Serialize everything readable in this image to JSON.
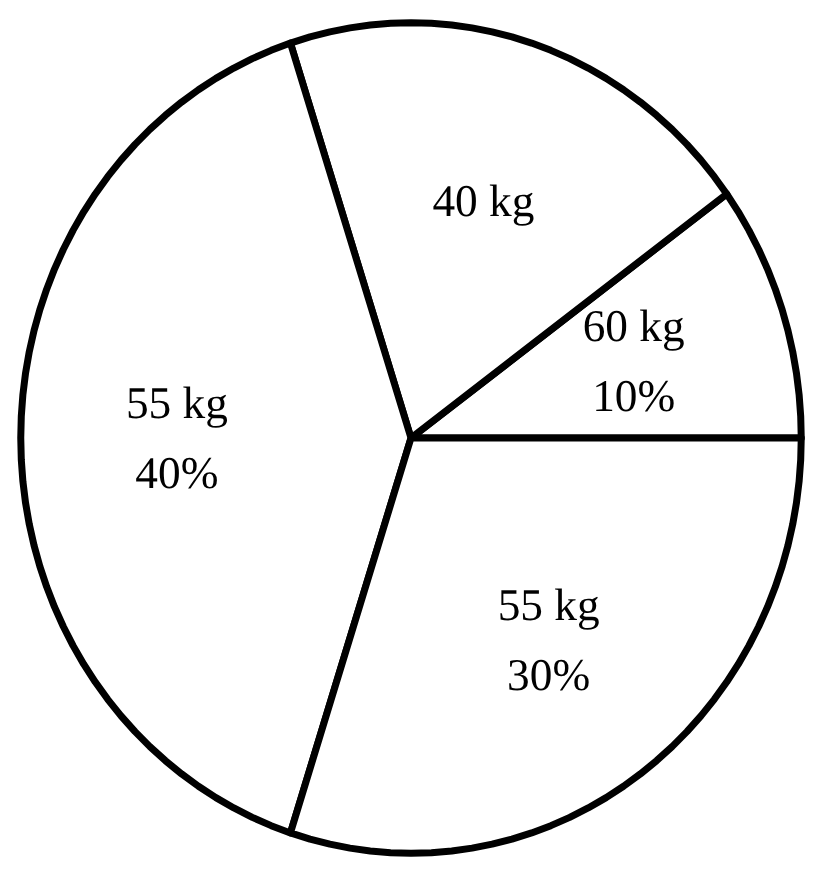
{
  "chart_data": {
    "type": "pie",
    "categories": [
      "60 kg",
      "40 kg",
      "55 kg",
      "55 kg"
    ],
    "values": [
      10,
      20,
      40,
      30
    ],
    "value_labels": [
      "10%",
      null,
      "40%",
      "30%"
    ],
    "colors": [
      "#ffffff",
      "#ffffff",
      "#ffffff",
      "#ffffff"
    ]
  }
}
